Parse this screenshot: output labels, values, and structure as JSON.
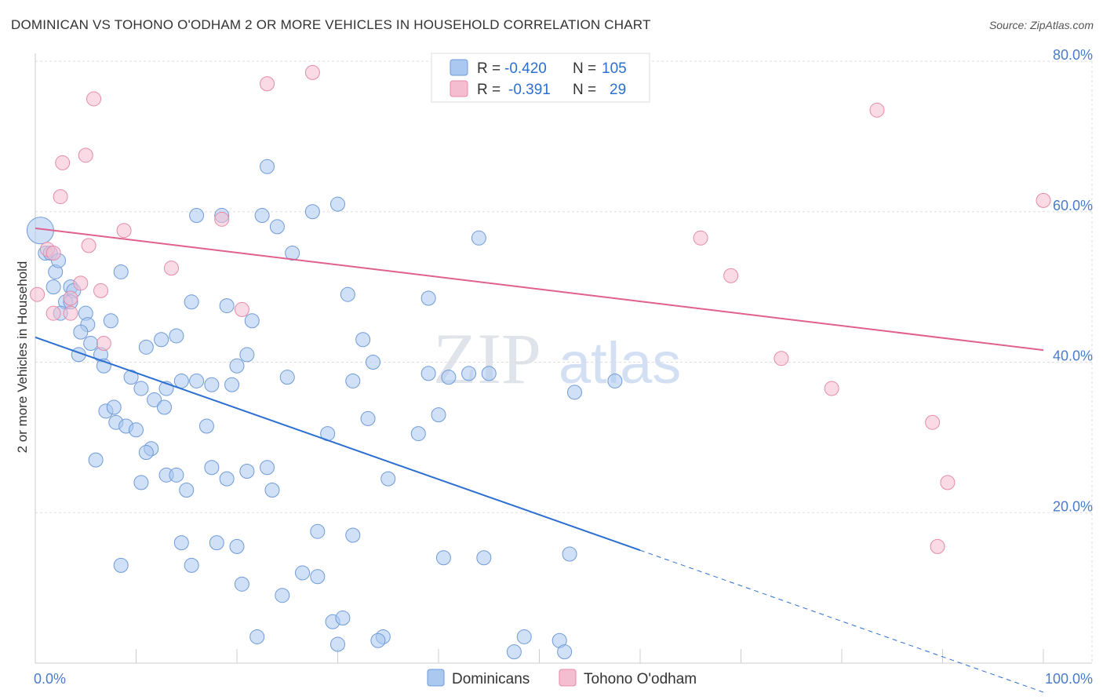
{
  "title": "DOMINICAN VS TOHONO O'ODHAM 2 OR MORE VEHICLES IN HOUSEHOLD CORRELATION CHART",
  "source": "Source: ZipAtlas.com",
  "watermark": {
    "zip": "ZIP",
    "atlas": "atlas"
  },
  "colors": {
    "blue_fill": "#aac8f0",
    "blue_stroke": "#6f9ad8",
    "blue_line": "#2c6fd1",
    "pink_fill": "#f5bdd0",
    "pink_stroke": "#e58aa8",
    "pink_line": "#e0608e",
    "grid": "#dddddd",
    "axis_text": "#4a7cc9"
  },
  "legend": {
    "rows": [
      {
        "r_label": "R =",
        "r_value": "-0.420",
        "n_label": "N =",
        "n_value": "105"
      },
      {
        "r_label": "R =",
        "r_value": "-0.391",
        "n_label": "N =",
        "n_value": "29"
      }
    ]
  },
  "bottom_legend": [
    "Dominicans",
    "Tohono O'odham"
  ],
  "chart_data": {
    "type": "scatter",
    "title": "DOMINICAN VS TOHONO O'ODHAM 2 OR MORE VEHICLES IN HOUSEHOLD CORRELATION CHART",
    "xlabel": "",
    "ylabel": "2 or more Vehicles in Household",
    "xlim": [
      0,
      100
    ],
    "ylim": [
      0,
      80
    ],
    "x_tick_labels": [
      {
        "x": 0,
        "label": "0.0%"
      },
      {
        "x": 100,
        "label": "100.0%"
      }
    ],
    "y_tick_labels": [
      {
        "y": 20,
        "label": "20.0%"
      },
      {
        "y": 40,
        "label": "40.0%"
      },
      {
        "y": 60,
        "label": "60.0%"
      },
      {
        "y": 80,
        "label": "80.0%"
      }
    ],
    "grid": true,
    "legend_position": "top-center",
    "series": [
      {
        "name": "Dominicans",
        "color": "#aac8f0",
        "trend": {
          "x0": 0,
          "y0": 43.3,
          "x1": 60,
          "y1": 15.0,
          "dashed_to_x": 100
        },
        "points": [
          [
            0.5,
            57.5
          ],
          [
            1.0,
            54.5
          ],
          [
            1.5,
            54.5
          ],
          [
            2.0,
            52.0
          ],
          [
            2.3,
            53.5
          ],
          [
            1.8,
            50.0
          ],
          [
            3.5,
            50.0
          ],
          [
            3.8,
            49.5
          ],
          [
            3.0,
            48.0
          ],
          [
            3.5,
            48.0
          ],
          [
            2.5,
            46.5
          ],
          [
            5.0,
            46.5
          ],
          [
            5.2,
            45.0
          ],
          [
            4.5,
            44.0
          ],
          [
            5.5,
            42.5
          ],
          [
            6.5,
            41.0
          ],
          [
            4.3,
            41.0
          ],
          [
            6.8,
            39.5
          ],
          [
            7.5,
            45.5
          ],
          [
            8.5,
            52.0
          ],
          [
            11.0,
            42.0
          ],
          [
            12.5,
            43.0
          ],
          [
            9.5,
            38.0
          ],
          [
            10.5,
            36.5
          ],
          [
            11.8,
            35.0
          ],
          [
            12.8,
            34.0
          ],
          [
            7.0,
            33.5
          ],
          [
            7.8,
            34.0
          ],
          [
            8.0,
            32.0
          ],
          [
            9.0,
            31.5
          ],
          [
            10.0,
            31.0
          ],
          [
            11.5,
            28.5
          ],
          [
            11.0,
            28.0
          ],
          [
            6.0,
            27.0
          ],
          [
            10.5,
            24.0
          ],
          [
            13.0,
            25.0
          ],
          [
            14.0,
            25.0
          ],
          [
            15.0,
            23.0
          ],
          [
            17.0,
            31.5
          ],
          [
            17.5,
            26.0
          ],
          [
            16.0,
            37.5
          ],
          [
            15.5,
            48.0
          ],
          [
            13.0,
            36.5
          ],
          [
            14.5,
            37.5
          ],
          [
            17.5,
            37.0
          ],
          [
            19.0,
            47.5
          ],
          [
            20.0,
            39.5
          ],
          [
            21.5,
            45.5
          ],
          [
            21.0,
            41.0
          ],
          [
            19.5,
            37.0
          ],
          [
            16.0,
            59.5
          ],
          [
            18.5,
            59.5
          ],
          [
            22.5,
            59.5
          ],
          [
            23.0,
            66.0
          ],
          [
            24.0,
            58.0
          ],
          [
            25.5,
            54.5
          ],
          [
            27.5,
            60.0
          ],
          [
            25.0,
            38.0
          ],
          [
            23.0,
            26.0
          ],
          [
            19.0,
            24.5
          ],
          [
            21.0,
            25.5
          ],
          [
            23.5,
            23.0
          ],
          [
            14.5,
            16.0
          ],
          [
            18.0,
            16.0
          ],
          [
            20.0,
            15.5
          ],
          [
            15.5,
            13.0
          ],
          [
            8.5,
            13.0
          ],
          [
            20.5,
            10.5
          ],
          [
            24.5,
            9.0
          ],
          [
            26.5,
            12.0
          ],
          [
            28.0,
            11.5
          ],
          [
            28.0,
            17.5
          ],
          [
            31.5,
            17.0
          ],
          [
            29.5,
            5.5
          ],
          [
            30.5,
            6.0
          ],
          [
            30.0,
            2.5
          ],
          [
            22.0,
            3.5
          ],
          [
            34.5,
            3.5
          ],
          [
            34.0,
            3.0
          ],
          [
            31.0,
            49.0
          ],
          [
            32.5,
            43.0
          ],
          [
            33.5,
            40.0
          ],
          [
            31.5,
            37.5
          ],
          [
            29.0,
            30.5
          ],
          [
            33.0,
            32.5
          ],
          [
            35.0,
            24.5
          ],
          [
            38.0,
            30.5
          ],
          [
            39.0,
            38.5
          ],
          [
            39.0,
            48.5
          ],
          [
            40.0,
            33.0
          ],
          [
            41.0,
            38.0
          ],
          [
            40.5,
            14.0
          ],
          [
            43.0,
            38.5
          ],
          [
            45.0,
            38.5
          ],
          [
            44.0,
            56.5
          ],
          [
            44.5,
            14.0
          ],
          [
            47.5,
            1.5
          ],
          [
            48.5,
            3.5
          ],
          [
            52.0,
            3.0
          ],
          [
            52.5,
            1.5
          ],
          [
            53.5,
            36.0
          ],
          [
            53.0,
            14.5
          ],
          [
            57.5,
            37.5
          ],
          [
            30.0,
            61.0
          ],
          [
            14.0,
            43.5
          ]
        ]
      },
      {
        "name": "Tohono O'odham",
        "color": "#f5bdd0",
        "trend": {
          "x0": 0,
          "y0": 57.8,
          "x1": 100,
          "y1": 41.6
        },
        "points": [
          [
            0.2,
            49.0
          ],
          [
            1.2,
            55.0
          ],
          [
            1.8,
            54.5
          ],
          [
            1.8,
            46.5
          ],
          [
            2.5,
            62.0
          ],
          [
            2.7,
            66.5
          ],
          [
            3.5,
            48.5
          ],
          [
            3.5,
            46.5
          ],
          [
            4.5,
            50.5
          ],
          [
            5.3,
            55.5
          ],
          [
            5.0,
            67.5
          ],
          [
            5.8,
            75.0
          ],
          [
            6.5,
            49.5
          ],
          [
            6.8,
            42.5
          ],
          [
            8.8,
            57.5
          ],
          [
            13.5,
            52.5
          ],
          [
            18.5,
            59.0
          ],
          [
            20.5,
            47.0
          ],
          [
            23.0,
            77.0
          ],
          [
            27.5,
            78.5
          ],
          [
            66.0,
            56.5
          ],
          [
            69.0,
            51.5
          ],
          [
            74.0,
            40.5
          ],
          [
            79.0,
            36.5
          ],
          [
            83.5,
            73.5
          ],
          [
            89.0,
            32.0
          ],
          [
            90.5,
            24.0
          ],
          [
            89.5,
            15.5
          ],
          [
            100.0,
            61.5
          ]
        ]
      }
    ]
  }
}
